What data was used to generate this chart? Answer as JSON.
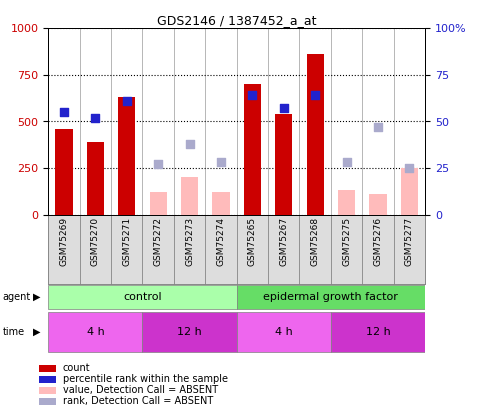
{
  "title": "GDS2146 / 1387452_a_at",
  "samples": [
    "GSM75269",
    "GSM75270",
    "GSM75271",
    "GSM75272",
    "GSM75273",
    "GSM75274",
    "GSM75265",
    "GSM75267",
    "GSM75268",
    "GSM75275",
    "GSM75276",
    "GSM75277"
  ],
  "count_present": [
    460,
    390,
    630,
    null,
    null,
    null,
    700,
    540,
    860,
    null,
    null,
    null
  ],
  "count_absent": [
    null,
    null,
    null,
    120,
    200,
    120,
    null,
    null,
    null,
    130,
    110,
    250
  ],
  "pct_present": [
    55,
    52,
    61,
    null,
    null,
    null,
    64,
    57,
    64,
    null,
    null,
    null
  ],
  "pct_absent": [
    null,
    null,
    null,
    27,
    38,
    28,
    null,
    null,
    null,
    28,
    47,
    25
  ],
  "bar_red": "#cc0000",
  "bar_pink": "#ffbbbb",
  "dot_dark": "#2222cc",
  "dot_light": "#aaaacc",
  "agent_ctrl_color": "#aaffaa",
  "agent_egf_color": "#66dd66",
  "time_4h_color": "#ee66ee",
  "time_12h_color": "#cc33cc",
  "xtick_bg": "#dddddd",
  "legend_items": [
    {
      "color": "#cc0000",
      "label": "count"
    },
    {
      "color": "#2222cc",
      "label": "percentile rank within the sample"
    },
    {
      "color": "#ffbbbb",
      "label": "value, Detection Call = ABSENT"
    },
    {
      "color": "#aaaacc",
      "label": "rank, Detection Call = ABSENT"
    }
  ]
}
